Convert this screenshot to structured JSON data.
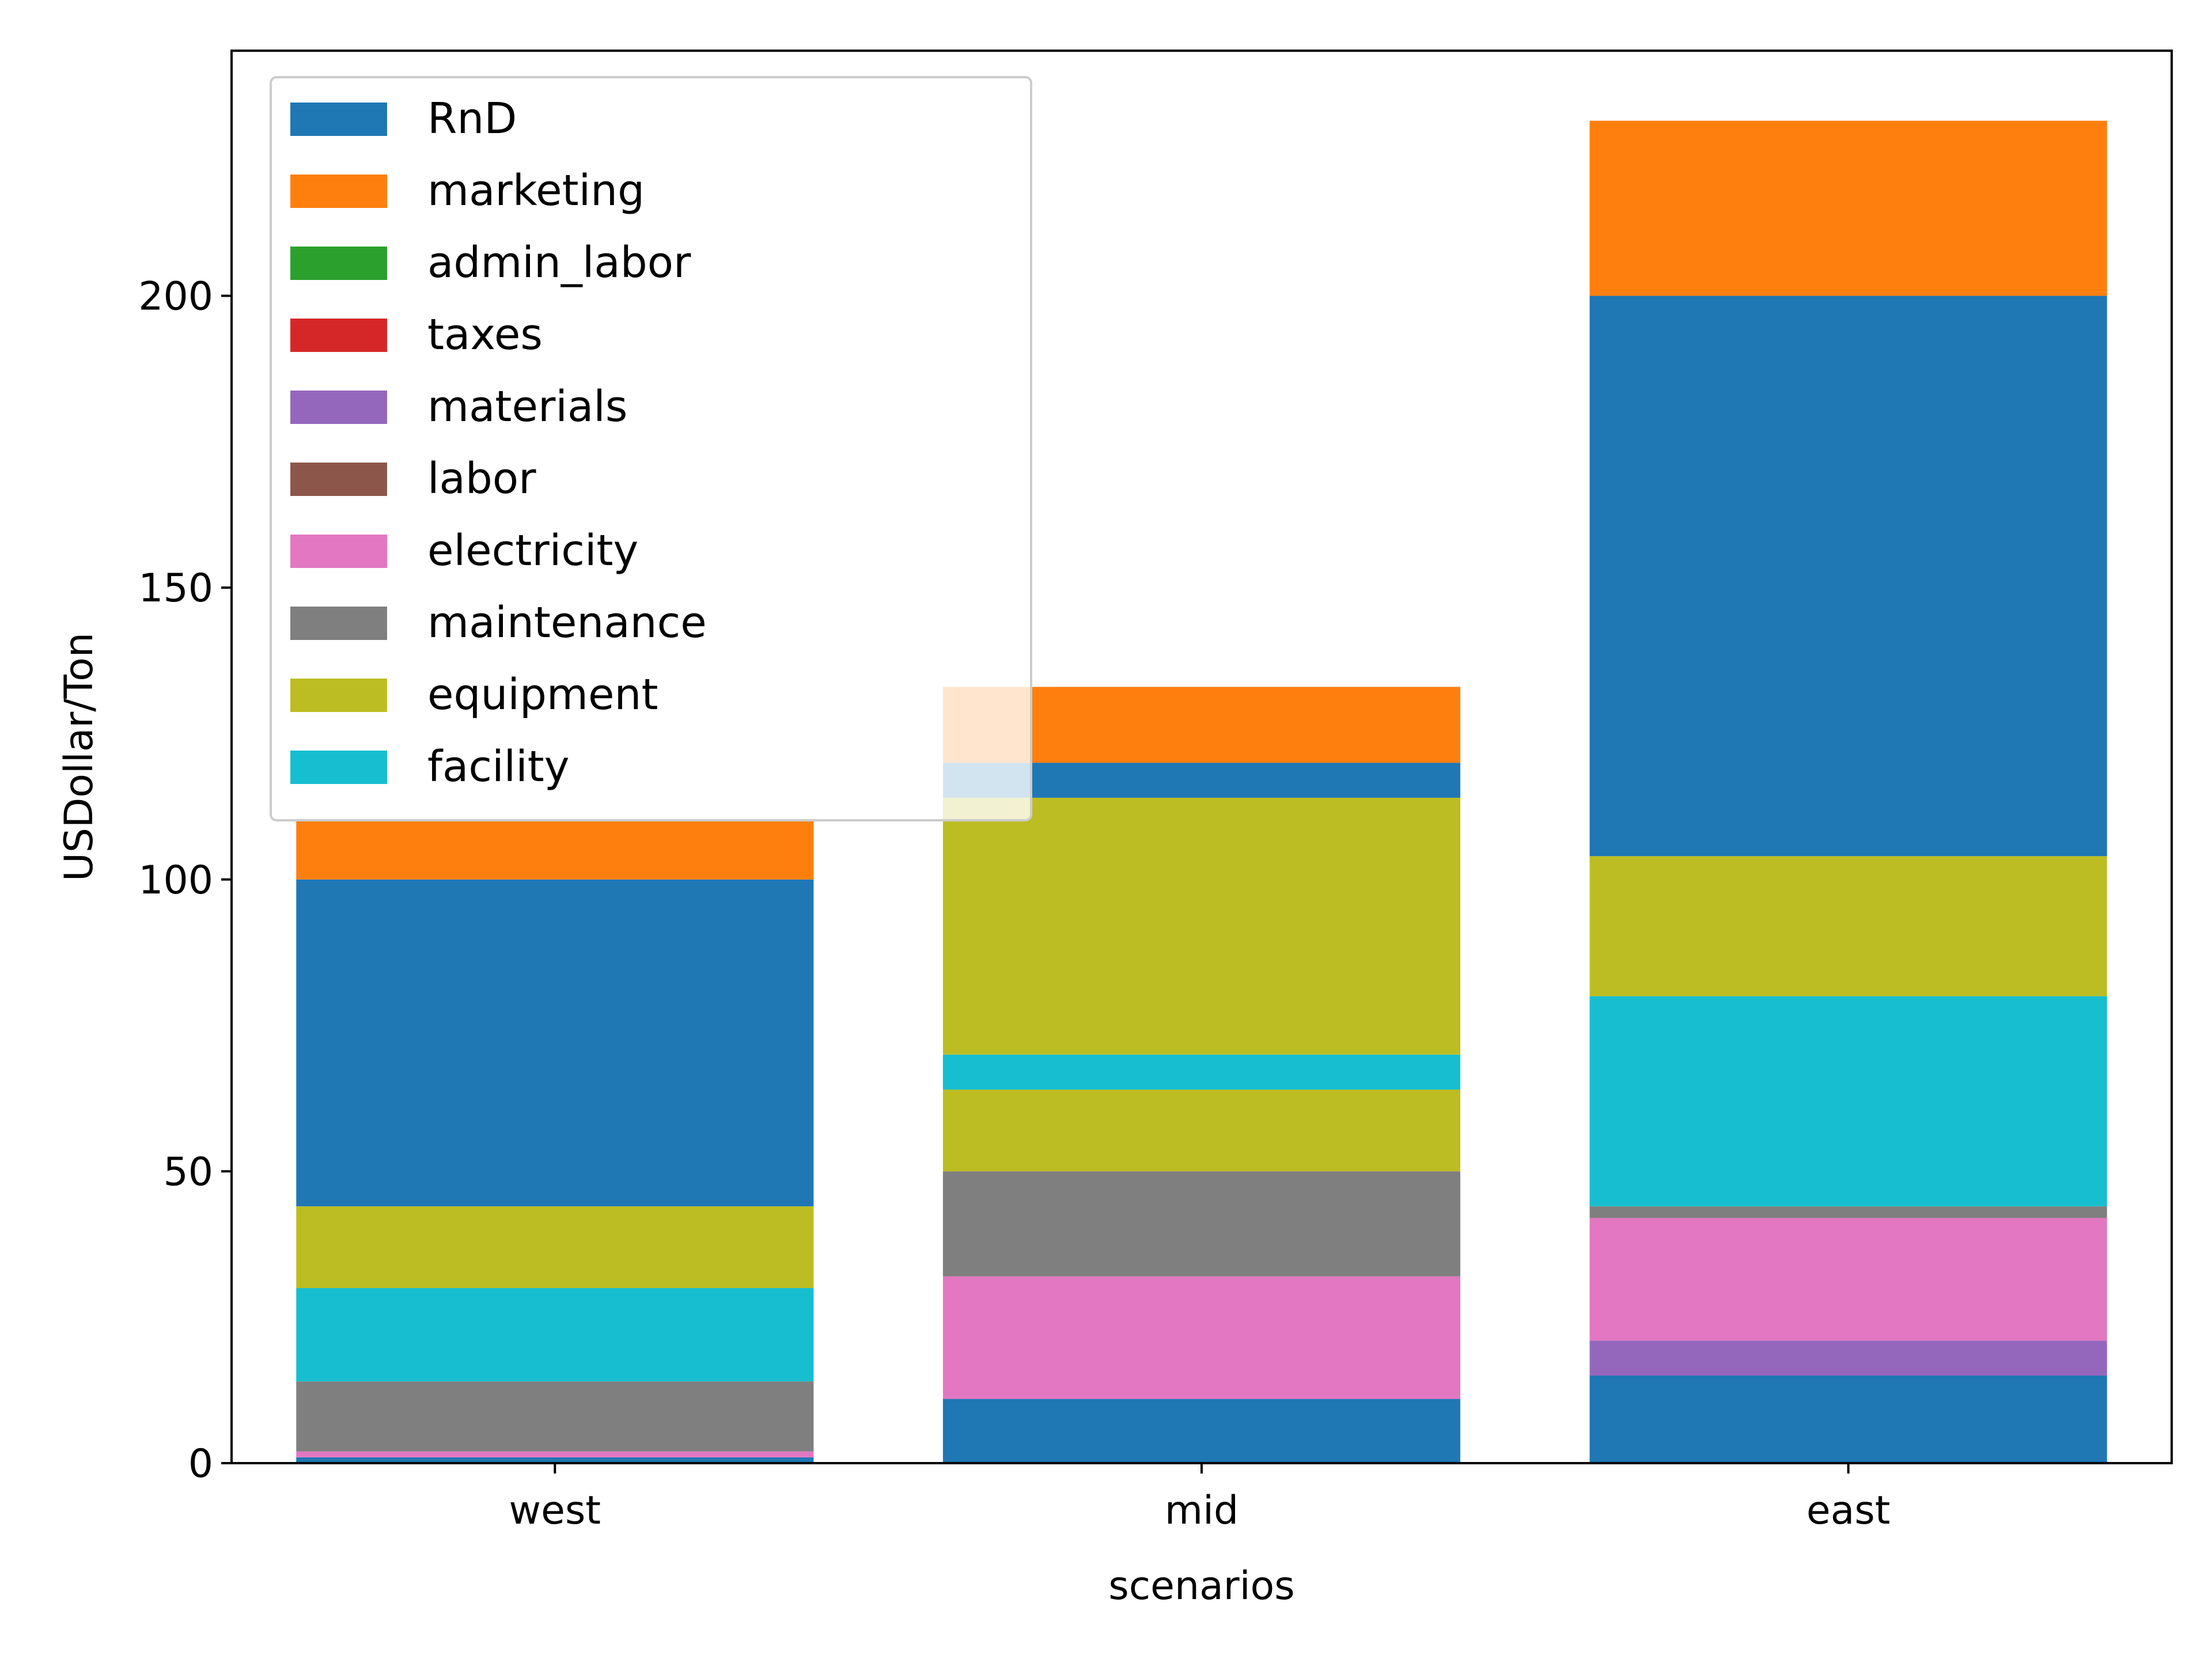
{
  "chart_data": {
    "type": "bar",
    "stacked": true,
    "title": "",
    "xlabel": "scenarios",
    "ylabel": "USDollar/Ton",
    "ylim": [
      0,
      242
    ],
    "yticks": [
      0,
      50,
      100,
      150,
      200
    ],
    "categories": [
      "west",
      "mid",
      "east"
    ],
    "grid": false,
    "legend_position": "top-left",
    "legend": [
      {
        "name": "RnD",
        "color": "#1f77b4"
      },
      {
        "name": "marketing",
        "color": "#ff7f0e"
      },
      {
        "name": "admin_labor",
        "color": "#2ca02c"
      },
      {
        "name": "taxes",
        "color": "#d62728"
      },
      {
        "name": "materials",
        "color": "#9467bd"
      },
      {
        "name": "labor",
        "color": "#8c564b"
      },
      {
        "name": "electricity",
        "color": "#e377c2"
      },
      {
        "name": "maintenance",
        "color": "#7f7f7f"
      },
      {
        "name": "equipment",
        "color": "#bcbd22"
      },
      {
        "name": "facility",
        "color": "#17becf"
      }
    ],
    "segments": [
      {
        "category": "west",
        "stack": [
          {
            "series": "RnD",
            "value": 1,
            "color": "#1f77b4"
          },
          {
            "series": "electricity",
            "value": 1,
            "color": "#e377c2"
          },
          {
            "series": "maintenance",
            "value": 12,
            "color": "#7f7f7f"
          },
          {
            "series": "facility",
            "value": 16,
            "color": "#17becf"
          },
          {
            "series": "equipment",
            "value": 14,
            "color": "#bcbd22"
          },
          {
            "series": "RnD",
            "value": 56,
            "color": "#1f77b4"
          },
          {
            "series": "marketing",
            "value": 10,
            "color": "#ff7f0e"
          }
        ]
      },
      {
        "category": "mid",
        "stack": [
          {
            "series": "RnD",
            "value": 11,
            "color": "#1f77b4"
          },
          {
            "series": "electricity",
            "value": 21,
            "color": "#e377c2"
          },
          {
            "series": "maintenance",
            "value": 18,
            "color": "#7f7f7f"
          },
          {
            "series": "equipment",
            "value": 14,
            "color": "#bcbd22"
          },
          {
            "series": "facility",
            "value": 6,
            "color": "#17becf"
          },
          {
            "series": "equipment",
            "value": 44,
            "color": "#bcbd22"
          },
          {
            "series": "RnD",
            "value": 6,
            "color": "#1f77b4"
          },
          {
            "series": "marketing",
            "value": 13,
            "color": "#ff7f0e"
          }
        ]
      },
      {
        "category": "east",
        "stack": [
          {
            "series": "RnD",
            "value": 15,
            "color": "#1f77b4"
          },
          {
            "series": "materials",
            "value": 6,
            "color": "#9467bd"
          },
          {
            "series": "electricity",
            "value": 21,
            "color": "#e377c2"
          },
          {
            "series": "maintenance",
            "value": 2,
            "color": "#7f7f7f"
          },
          {
            "series": "facility",
            "value": 36,
            "color": "#17becf"
          },
          {
            "series": "equipment",
            "value": 24,
            "color": "#bcbd22"
          },
          {
            "series": "RnD",
            "value": 96,
            "color": "#1f77b4"
          },
          {
            "series": "marketing",
            "value": 30,
            "color": "#ff7f0e"
          }
        ]
      }
    ]
  }
}
